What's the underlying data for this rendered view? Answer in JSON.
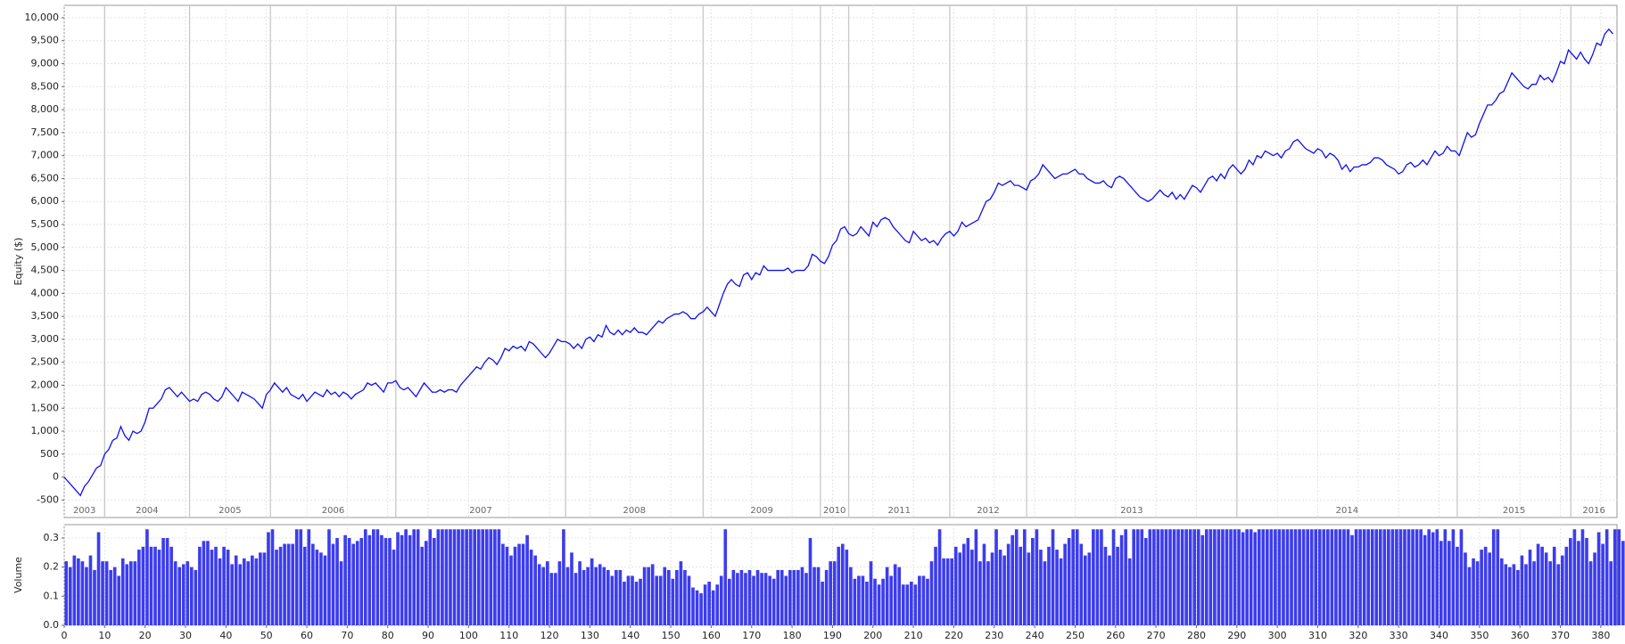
{
  "chart_data": [
    {
      "type": "line",
      "ylabel": "Equity ($)",
      "color": "#1010ee",
      "grid": true,
      "xlim": [
        0,
        384
      ],
      "ylim": [
        -880,
        10270
      ],
      "yticks": [
        -500,
        0,
        500,
        {
          "value": 1000,
          "label": "1,000"
        },
        {
          "value": 1500,
          "label": "1,500"
        },
        {
          "value": 2000,
          "label": "2,000"
        },
        {
          "value": 2500,
          "label": "2,500"
        },
        {
          "value": 3000,
          "label": "3,000"
        },
        {
          "value": 3500,
          "label": "3,500"
        },
        {
          "value": 4000,
          "label": "4,000"
        },
        {
          "value": 4500,
          "label": "4,500"
        },
        {
          "value": 5000,
          "label": "5,000"
        },
        {
          "value": 5500,
          "label": "5,500"
        },
        {
          "value": 6000,
          "label": "6,000"
        },
        {
          "value": 6500,
          "label": "6,500"
        },
        {
          "value": 7000,
          "label": "7,000"
        },
        {
          "value": 7500,
          "label": "7,500"
        },
        {
          "value": 8000,
          "label": "8,000"
        },
        {
          "value": 8500,
          "label": "8,500"
        },
        {
          "value": 9000,
          "label": "9,000"
        },
        {
          "value": 9500,
          "label": "9,500"
        },
        {
          "value": 10000,
          "label": "10,000"
        }
      ],
      "year_labels": [
        "2003",
        "2004",
        "2005",
        "2006",
        "2007",
        "2008",
        "2009",
        "2010",
        "2011",
        "2012",
        "2013",
        "2014",
        "2015",
        "2016"
      ],
      "year_boundaries": [
        10,
        31,
        51,
        82,
        124,
        158,
        187,
        194,
        219,
        238,
        290,
        344.5,
        372.6
      ],
      "values": [
        0,
        -100,
        -200,
        -300,
        -400,
        -200,
        -100,
        50,
        200,
        250,
        500,
        600,
        800,
        850,
        1100,
        900,
        800,
        1000,
        950,
        1000,
        1200,
        1500,
        1500,
        1600,
        1700,
        1900,
        1950,
        1850,
        1750,
        1850,
        1750,
        1650,
        1700,
        1650,
        1800,
        1850,
        1800,
        1700,
        1650,
        1750,
        1950,
        1850,
        1750,
        1650,
        1850,
        1800,
        1750,
        1700,
        1600,
        1500,
        1800,
        1900,
        2050,
        1950,
        1850,
        1950,
        1800,
        1750,
        1700,
        1800,
        1650,
        1750,
        1850,
        1800,
        1750,
        1900,
        1800,
        1850,
        1750,
        1850,
        1800,
        1700,
        1800,
        1850,
        1900,
        2050,
        2000,
        2050,
        1950,
        1850,
        2050,
        2050,
        2100,
        1950,
        1900,
        1950,
        1850,
        1750,
        1900,
        2050,
        1950,
        1850,
        1850,
        1900,
        1850,
        1900,
        1900,
        1850,
        2000,
        2100,
        2200,
        2300,
        2400,
        2350,
        2500,
        2600,
        2550,
        2450,
        2600,
        2800,
        2750,
        2850,
        2800,
        2850,
        2750,
        2950,
        2900,
        2800,
        2700,
        2600,
        2700,
        2850,
        3000,
        2950,
        2950,
        2900,
        2800,
        2900,
        2800,
        3000,
        3050,
        2950,
        3100,
        3050,
        3300,
        3150,
        3100,
        3200,
        3100,
        3200,
        3150,
        3250,
        3150,
        3150,
        3100,
        3200,
        3300,
        3400,
        3350,
        3450,
        3500,
        3550,
        3550,
        3600,
        3550,
        3450,
        3450,
        3550,
        3600,
        3700,
        3600,
        3500,
        3750,
        4000,
        4200,
        4300,
        4200,
        4150,
        4400,
        4450,
        4300,
        4450,
        4400,
        4600,
        4500,
        4500,
        4500,
        4500,
        4500,
        4550,
        4450,
        4500,
        4500,
        4500,
        4600,
        4850,
        4800,
        4700,
        4650,
        4800,
        5050,
        5150,
        5400,
        5450,
        5300,
        5250,
        5300,
        5450,
        5350,
        5250,
        5550,
        5450,
        5600,
        5650,
        5600,
        5450,
        5350,
        5250,
        5150,
        5100,
        5350,
        5250,
        5150,
        5200,
        5100,
        5150,
        5050,
        5200,
        5300,
        5350,
        5250,
        5350,
        5550,
        5450,
        5500,
        5550,
        5600,
        5800,
        6000,
        6050,
        6200,
        6400,
        6350,
        6400,
        6450,
        6350,
        6350,
        6300,
        6250,
        6450,
        6500,
        6600,
        6800,
        6700,
        6600,
        6500,
        6550,
        6600,
        6600,
        6650,
        6700,
        6600,
        6600,
        6500,
        6450,
        6400,
        6400,
        6450,
        6350,
        6300,
        6500,
        6550,
        6500,
        6400,
        6300,
        6200,
        6100,
        6050,
        6000,
        6050,
        6150,
        6250,
        6150,
        6100,
        6200,
        6050,
        6150,
        6050,
        6200,
        6350,
        6300,
        6200,
        6350,
        6500,
        6550,
        6450,
        6600,
        6500,
        6700,
        6800,
        6700,
        6600,
        6700,
        6900,
        6800,
        7000,
        6950,
        7100,
        7050,
        7000,
        7050,
        6950,
        7100,
        7150,
        7300,
        7350,
        7250,
        7150,
        7100,
        7050,
        7150,
        7100,
        6950,
        7050,
        7000,
        6900,
        6700,
        6800,
        6650,
        6750,
        6750,
        6800,
        6800,
        6850,
        6950,
        6950,
        6900,
        6800,
        6750,
        6700,
        6600,
        6650,
        6800,
        6850,
        6750,
        6800,
        6900,
        6800,
        6950,
        7100,
        7000,
        7050,
        7200,
        7100,
        7100,
        7000,
        7250,
        7500,
        7400,
        7450,
        7700,
        7900,
        8100,
        8100,
        8200,
        8350,
        8400,
        8600,
        8800,
        8700,
        8600,
        8500,
        8450,
        8550,
        8550,
        8750,
        8650,
        8700,
        8600,
        8800,
        9050,
        9000,
        9300,
        9200,
        9100,
        9250,
        9100,
        9000,
        9200,
        9450,
        9400,
        9650,
        9750,
        9650
      ]
    },
    {
      "type": "bar",
      "ylabel": "Volume",
      "color": "#3c3cee",
      "grid": true,
      "xlim": [
        0,
        384
      ],
      "ylim": [
        0,
        0.346
      ],
      "xticks": [
        0,
        10,
        20,
        30,
        40,
        50,
        60,
        70,
        80,
        90,
        100,
        110,
        120,
        130,
        140,
        150,
        160,
        170,
        180,
        190,
        200,
        210,
        220,
        230,
        240,
        250,
        260,
        270,
        280,
        290,
        300,
        310,
        320,
        330,
        340,
        350,
        360,
        370,
        380
      ],
      "yticks": [
        {
          "value": 0,
          "label": "0.0"
        },
        0.1,
        0.2,
        0.3
      ],
      "values": [
        0.22,
        0.2,
        0.24,
        0.23,
        0.22,
        0.2,
        0.24,
        0.19,
        0.32,
        0.22,
        0.22,
        0.19,
        0.2,
        0.17,
        0.23,
        0.21,
        0.22,
        0.22,
        0.26,
        0.27,
        0.33,
        0.27,
        0.27,
        0.26,
        0.3,
        0.3,
        0.27,
        0.22,
        0.2,
        0.21,
        0.22,
        0.2,
        0.19,
        0.27,
        0.29,
        0.29,
        0.26,
        0.27,
        0.23,
        0.27,
        0.26,
        0.21,
        0.24,
        0.21,
        0.23,
        0.22,
        0.24,
        0.23,
        0.25,
        0.25,
        0.32,
        0.33,
        0.26,
        0.27,
        0.28,
        0.28,
        0.28,
        0.33,
        0.33,
        0.27,
        0.33,
        0.28,
        0.26,
        0.25,
        0.24,
        0.33,
        0.28,
        0.3,
        0.22,
        0.31,
        0.3,
        0.28,
        0.29,
        0.3,
        0.33,
        0.31,
        0.33,
        0.33,
        0.31,
        0.3,
        0.3,
        0.26,
        0.32,
        0.31,
        0.33,
        0.31,
        0.33,
        0.33,
        0.27,
        0.29,
        0.33,
        0.3,
        0.33,
        0.33,
        0.33,
        0.33,
        0.33,
        0.33,
        0.33,
        0.33,
        0.33,
        0.33,
        0.33,
        0.33,
        0.33,
        0.33,
        0.33,
        0.33,
        0.28,
        0.27,
        0.24,
        0.27,
        0.28,
        0.28,
        0.31,
        0.26,
        0.24,
        0.21,
        0.2,
        0.22,
        0.18,
        0.18,
        0.22,
        0.33,
        0.2,
        0.25,
        0.18,
        0.22,
        0.19,
        0.2,
        0.23,
        0.2,
        0.21,
        0.2,
        0.19,
        0.17,
        0.19,
        0.19,
        0.15,
        0.17,
        0.17,
        0.15,
        0.16,
        0.2,
        0.2,
        0.21,
        0.17,
        0.17,
        0.2,
        0.19,
        0.16,
        0.19,
        0.22,
        0.19,
        0.17,
        0.13,
        0.12,
        0.11,
        0.14,
        0.15,
        0.12,
        0.14,
        0.17,
        0.33,
        0.16,
        0.19,
        0.18,
        0.19,
        0.18,
        0.19,
        0.17,
        0.19,
        0.18,
        0.18,
        0.17,
        0.16,
        0.19,
        0.19,
        0.17,
        0.19,
        0.19,
        0.19,
        0.2,
        0.18,
        0.3,
        0.2,
        0.2,
        0.15,
        0.19,
        0.22,
        0.22,
        0.27,
        0.28,
        0.26,
        0.2,
        0.16,
        0.17,
        0.17,
        0.15,
        0.22,
        0.16,
        0.14,
        0.16,
        0.2,
        0.17,
        0.21,
        0.2,
        0.14,
        0.14,
        0.15,
        0.14,
        0.17,
        0.17,
        0.16,
        0.22,
        0.27,
        0.33,
        0.23,
        0.23,
        0.23,
        0.27,
        0.25,
        0.28,
        0.3,
        0.26,
        0.33,
        0.22,
        0.28,
        0.22,
        0.25,
        0.33,
        0.26,
        0.24,
        0.28,
        0.31,
        0.33,
        0.27,
        0.33,
        0.25,
        0.3,
        0.33,
        0.26,
        0.22,
        0.27,
        0.33,
        0.26,
        0.23,
        0.28,
        0.3,
        0.33,
        0.33,
        0.28,
        0.24,
        0.25,
        0.33,
        0.33,
        0.33,
        0.27,
        0.24,
        0.33,
        0.27,
        0.31,
        0.33,
        0.23,
        0.33,
        0.33,
        0.33,
        0.3,
        0.33,
        0.33,
        0.33,
        0.33,
        0.33,
        0.33,
        0.33,
        0.33,
        0.33,
        0.33,
        0.33,
        0.33,
        0.33,
        0.31,
        0.33,
        0.33,
        0.33,
        0.33,
        0.33,
        0.33,
        0.33,
        0.33,
        0.33,
        0.32,
        0.33,
        0.33,
        0.32,
        0.33,
        0.33,
        0.33,
        0.33,
        0.33,
        0.33,
        0.33,
        0.33,
        0.33,
        0.33,
        0.33,
        0.33,
        0.33,
        0.33,
        0.33,
        0.33,
        0.33,
        0.33,
        0.33,
        0.33,
        0.33,
        0.33,
        0.33,
        0.31,
        0.33,
        0.33,
        0.33,
        0.33,
        0.33,
        0.33,
        0.33,
        0.33,
        0.33,
        0.33,
        0.33,
        0.33,
        0.33,
        0.33,
        0.33,
        0.33,
        0.33,
        0.31,
        0.33,
        0.32,
        0.33,
        0.29,
        0.33,
        0.29,
        0.33,
        0.27,
        0.33,
        0.25,
        0.2,
        0.23,
        0.22,
        0.26,
        0.27,
        0.25,
        0.33,
        0.33,
        0.23,
        0.21,
        0.2,
        0.21,
        0.19,
        0.24,
        0.21,
        0.26,
        0.22,
        0.28,
        0.27,
        0.25,
        0.22,
        0.27,
        0.21,
        0.24,
        0.27,
        0.3,
        0.33,
        0.29,
        0.33,
        0.3,
        0.22,
        0.25,
        0.32,
        0.28,
        0.33,
        0.22,
        0.33,
        0.33,
        0.29
      ]
    }
  ]
}
